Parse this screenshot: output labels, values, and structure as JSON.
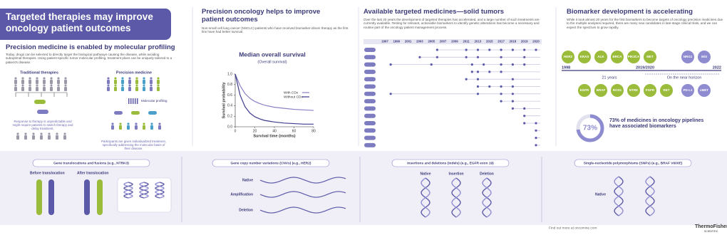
{
  "hero": {
    "title": "Targeted therapies may improve oncology patient outcomes"
  },
  "profiling": {
    "title": "Precision medicine is enabled by molecular profiling",
    "text": "Today, drugs can be selected to directly target the biological pathways causing the disease, while avoiding suboptimal therapies. Using patient-specific tumor molecular profiling, treatment plans can be uniquely tailored to a patient's disease.",
    "traditional": "Traditional therapies",
    "precision": "Precision medicine",
    "molecular": "Molecular profiling",
    "note_traditional": "Response to therapy is unpredictable and might require patients to switch therapy and delay treatment.",
    "note_precision": "Participants are given individualized treatment, specifically addressing the molecular basis of their disease."
  },
  "outcomes": {
    "title": "Precision oncology helps to improve patient outcomes",
    "text": "Non-small cell lung cancer (NSCLC) patients who have received biomarker-driven therapy as the first line have had better survival."
  },
  "chart_data": {
    "type": "line",
    "title": "Median overall survival",
    "subtitle": "(Overall survival)",
    "x_label": "Survival time (months)",
    "y_label": "Survival probability",
    "x": [
      0,
      5,
      10,
      15,
      20,
      25,
      30,
      40,
      50,
      60,
      70,
      80
    ],
    "series": [
      {
        "name": "With CDx",
        "color": "#8a80c4",
        "values": [
          1,
          0.78,
          0.63,
          0.54,
          0.48,
          0.44,
          0.41,
          0.37,
          0.35,
          0.33,
          0.32,
          0.31
        ]
      },
      {
        "name": "Without CDx",
        "color": "#3d3a8c",
        "values": [
          1,
          0.6,
          0.38,
          0.26,
          0.19,
          0.15,
          0.12,
          0.09,
          0.07,
          0.06,
          0.05,
          0.05
        ]
      }
    ],
    "xlim": [
      0,
      80
    ],
    "xticks": [
      0,
      20,
      40,
      60,
      80
    ],
    "ylim": [
      0,
      1
    ],
    "yticks": [
      {
        "value": 0,
        "label": "0.0"
      },
      0.2,
      0.4,
      0.6,
      0.8,
      {
        "value": 1,
        "label": "1.0"
      }
    ]
  },
  "medicines": {
    "title": "Available targeted medicines—solid tumors",
    "text": "Over the last 20 years the development of targeted therapies has accelerated, and a large number of such treatments are currently available. Testing for relevant, actionable biomarkers to identify genetic alterations has become a necessary and routine part of the oncology patient management process.",
    "years": [
      1997,
      1999,
      2001,
      2003,
      2005,
      2007,
      2009,
      2011,
      2013,
      2015,
      2017,
      2018,
      2019,
      2020
    ],
    "rows": [
      {
        "approvals": [
          2006,
          2011,
          2013,
          2015,
          2017,
          2018,
          2019,
          2020
        ]
      },
      {
        "approvals": [
          2003,
          2006,
          2011,
          2013,
          2017,
          2019
        ]
      },
      {
        "approvals": [
          1998,
          2005,
          2012,
          2014,
          2017,
          2018,
          2019
        ]
      },
      {
        "approvals": [
          2012,
          2013,
          2015,
          2017
        ]
      },
      {
        "approvals": [
          2011,
          2013,
          2018
        ]
      },
      {
        "approvals": [
          2013,
          2015,
          2017,
          2018
        ]
      },
      {
        "approvals": [
          1998,
          2013,
          2017,
          2018
        ]
      },
      {
        "approvals": [
          2017,
          2018
        ]
      },
      {
        "approvals": [
          2018,
          2019
        ]
      },
      {
        "approvals": [
          2019
        ]
      },
      {
        "approvals": [
          2019,
          2020
        ]
      },
      {
        "approvals": [
          2020
        ]
      },
      {
        "approvals": [
          2020
        ]
      },
      {
        "approvals": [
          2020
        ]
      }
    ]
  },
  "biomarkers": {
    "title": "Biomarker development is accelerating",
    "text": "While it took almost 20 years for the first biomarkers to become targets of oncology precision medicines due to the multiple analyses required, there are many new candidates in late-stage clinical trials, and we can expect the spectrum to grow rapidly.",
    "approved_top": [
      "HER2",
      "KRAS",
      "ALK",
      "BRCA",
      "PIK3CA",
      "MET"
    ],
    "approved_bottom": [
      "EGFR",
      "BRAF",
      "ROS1",
      "NTRK",
      "FGFR",
      "RET"
    ],
    "horizon_top": [
      "NRG1",
      "MSI"
    ],
    "horizon_bottom": [
      "PD-L1",
      "cMET"
    ],
    "start": "1998",
    "mid": "2019/2020",
    "end": "2022",
    "span": "21 years",
    "horizon": "On the near horizon",
    "stat": {
      "value": 73,
      "label": "73%",
      "text": "73% of medicines in oncology pipelines have associated biomarkers"
    }
  },
  "variants": [
    {
      "title": "Gene translocations and fusions (e.g., NTRK3)",
      "labels": [
        "Before translocation",
        "After translocation"
      ]
    },
    {
      "title": "Gene copy number variations (CNVs) (e.g., HER2)",
      "labels": [
        "Native",
        "Amplification",
        "Deletion"
      ]
    },
    {
      "title": "Insertions and deletions (indels) (e.g., EGFR exon 19)",
      "labels": [
        "Native",
        "Insertion",
        "Deletion"
      ]
    },
    {
      "title": "Single-nucleotide polymorphisms (SNPs) (e.g., BRAF V600E)",
      "labels": [
        "Native"
      ]
    }
  ],
  "footer": {
    "link": "Find out more at oncomine.com",
    "brand": "ThermoFisher",
    "brand_sub": "SCIENTIFIC"
  }
}
